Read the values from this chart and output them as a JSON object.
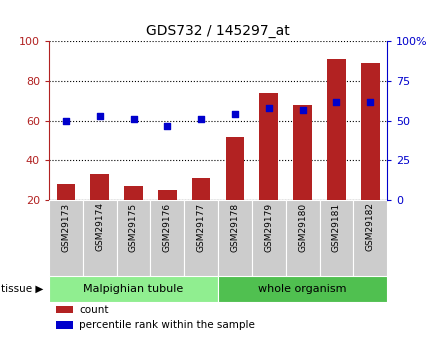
{
  "title": "GDS732 / 145297_at",
  "samples": [
    "GSM29173",
    "GSM29174",
    "GSM29175",
    "GSM29176",
    "GSM29177",
    "GSM29178",
    "GSM29179",
    "GSM29180",
    "GSM29181",
    "GSM29182"
  ],
  "counts": [
    28,
    33,
    27,
    25,
    31,
    52,
    74,
    68,
    91,
    89
  ],
  "percentiles": [
    50,
    53,
    51,
    47,
    51,
    54,
    58,
    57,
    62,
    62
  ],
  "left_ylim": [
    20,
    100
  ],
  "right_ylim": [
    0,
    100
  ],
  "left_yticks": [
    20,
    40,
    60,
    80,
    100
  ],
  "right_yticks": [
    0,
    25,
    50,
    75,
    100
  ],
  "right_yticklabels": [
    "0",
    "25",
    "50",
    "75",
    "100%"
  ],
  "bar_color": "#b22222",
  "dot_color": "#0000cc",
  "tissue_groups": [
    {
      "label": "Malpighian tubule",
      "start": 0,
      "end": 5,
      "color": "#90ee90"
    },
    {
      "label": "whole organism",
      "start": 5,
      "end": 10,
      "color": "#50c050"
    }
  ],
  "legend_items": [
    {
      "label": "count",
      "color": "#b22222"
    },
    {
      "label": "percentile rank within the sample",
      "color": "#0000cc"
    }
  ]
}
